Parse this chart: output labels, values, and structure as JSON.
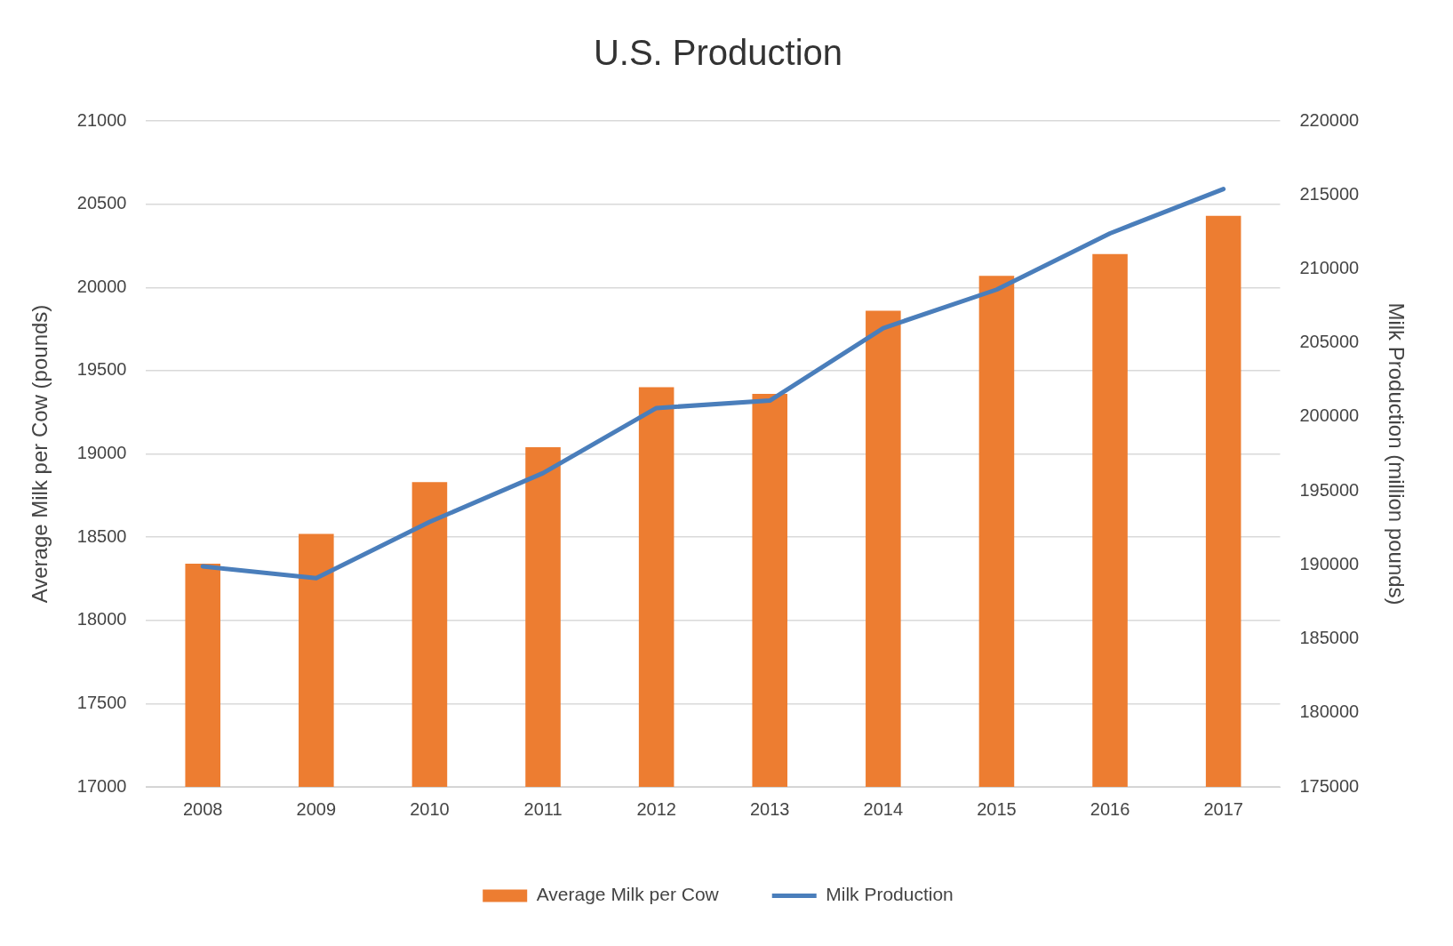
{
  "chart_data": {
    "type": "bar",
    "title": "U.S. Production",
    "ylabel": "Average Milk per Cow (pounds)",
    "y2label": "Milk Production (million pounds)",
    "categories": [
      "2008",
      "2009",
      "2010",
      "2011",
      "2012",
      "2013",
      "2014",
      "2015",
      "2016",
      "2017"
    ],
    "series": [
      {
        "name": "Average Milk per Cow",
        "color": "#ed7d31",
        "values": [
          18340,
          18520,
          18830,
          19040,
          19400,
          19360,
          19860,
          20070,
          20200,
          20430
        ]
      },
      {
        "name": "Milk Production",
        "type": "line",
        "axis": "y2",
        "color": "#4a7ebb",
        "values": [
          189900,
          189100,
          192900,
          196200,
          200600,
          201100,
          206000,
          208600,
          212400,
          215400
        ]
      }
    ],
    "ylim": [
      17000,
      21000
    ],
    "yticks": [
      17000,
      17500,
      18000,
      18500,
      19000,
      19500,
      20000,
      20500,
      21000
    ],
    "y2lim": [
      175000,
      220000
    ],
    "y2ticks": [
      175000,
      180000,
      185000,
      190000,
      195000,
      200000,
      205000,
      210000,
      215000,
      220000
    ],
    "grid": "y",
    "legend": "bottom",
    "marker": "none",
    "line_style": "solid"
  }
}
